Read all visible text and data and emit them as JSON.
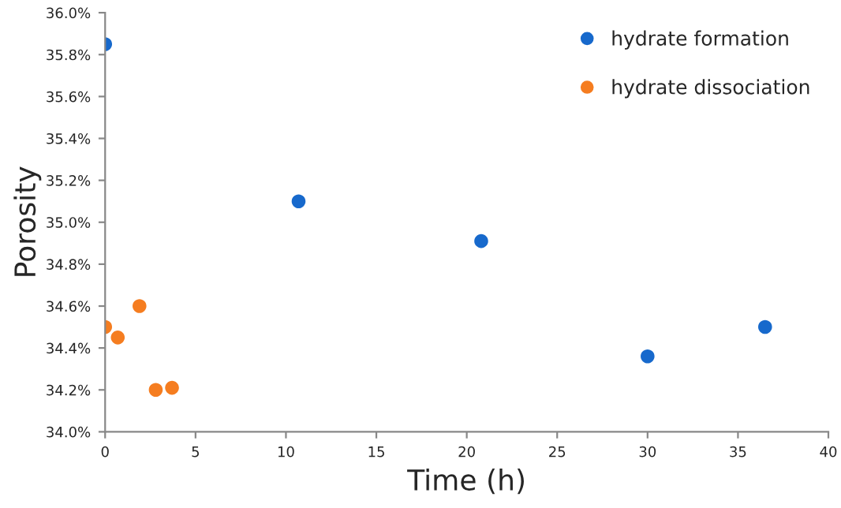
{
  "chart_data": {
    "type": "scatter",
    "xlabel": "Time (h)",
    "ylabel": "Porosity",
    "series": [
      {
        "name": "hydrate formation",
        "color": "#1769cc",
        "x": [
          0,
          10.7,
          20.8,
          30.0,
          36.5
        ],
        "values": [
          35.85,
          35.1,
          34.91,
          34.36,
          34.5
        ]
      },
      {
        "name": "hydrate dissociation",
        "color": "#f57d20",
        "x": [
          0,
          0.7,
          1.9,
          2.8,
          3.7
        ],
        "values": [
          34.5,
          34.45,
          34.6,
          34.2,
          34.21
        ]
      }
    ],
    "xlim": [
      0,
      40
    ],
    "xticks": [
      0,
      5,
      10,
      15,
      20,
      25,
      30,
      35,
      40
    ],
    "ylim": [
      34.0,
      36.0
    ],
    "yticks": [
      {
        "value": 34.0,
        "label": "34.0%"
      },
      {
        "value": 34.2,
        "label": "34.2%"
      },
      {
        "value": 34.4,
        "label": "34.4%"
      },
      {
        "value": 34.6,
        "label": "34.6%"
      },
      {
        "value": 34.8,
        "label": "34.8%"
      },
      {
        "value": 35.0,
        "label": "35.0%"
      },
      {
        "value": 35.2,
        "label": "35.2%"
      },
      {
        "value": 35.4,
        "label": "35.4%"
      },
      {
        "value": 35.6,
        "label": "35.6%"
      },
      {
        "value": 35.8,
        "label": "35.8%"
      },
      {
        "value": 36.0,
        "label": "36.0%"
      }
    ],
    "grid": false,
    "legend": "top right",
    "marker": "circle"
  }
}
